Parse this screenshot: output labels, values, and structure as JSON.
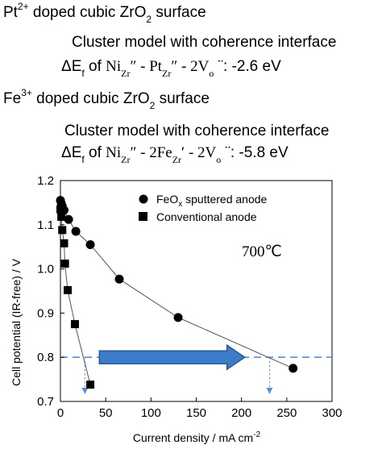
{
  "header": {
    "pt": {
      "line1_prefix": "Pt",
      "line1_sup": "2+",
      "line1_mid": " doped cubic ZrO",
      "line1_sub": "2",
      "line1_suffix": " surface",
      "model": "Cluster model with coherence interface",
      "energy_prefix": "ΔE",
      "energy_sub": "f",
      "energy_of": " of ",
      "energy_formula": "Ni",
      "energy_formula_sub1": "Zr",
      "energy_formula_part2": "″ - Pt",
      "energy_formula_sub2": "Zr",
      "energy_formula_part3": "″ - 2V",
      "energy_formula_sub3": "o",
      "energy_formula_dots": "¨",
      "energy_value": ": -2.6 eV"
    },
    "fe": {
      "line1_prefix": "Fe",
      "line1_sup": "3+",
      "line1_mid": " doped cubic ZrO",
      "line1_sub": "2",
      "line1_suffix": " surface",
      "model": "Cluster model with coherence interface",
      "energy_prefix": "ΔE",
      "energy_sub": "f",
      "energy_of": " of ",
      "energy_formula": "Ni",
      "energy_formula_sub1": "Zr",
      "energy_formula_part2": "″ - 2Fe",
      "energy_formula_sub2": "Zr",
      "energy_formula_part3": "′ - 2V",
      "energy_formula_sub3": "o",
      "energy_formula_dots": "¨",
      "energy_value": ": -5.8 eV"
    }
  },
  "chart_data": {
    "type": "scatter",
    "xlabel": "Current density / mA cm",
    "xlabel_sup": "-2",
    "ylabel": "Cell potential (IR-free) / V",
    "xlim": [
      0,
      300
    ],
    "ylim": [
      0.7,
      1.2
    ],
    "xticks": [
      "0",
      "50",
      "100",
      "150",
      "200",
      "250",
      "300"
    ],
    "yticks": [
      "0.7",
      "0.8",
      "0.9",
      "1.0",
      "1.1",
      "1.2"
    ],
    "annotation": "700℃",
    "reference_line_y": 0.8,
    "series": [
      {
        "name": "FeO",
        "name_sub": "x",
        "name_suffix": " sputtered anode",
        "marker": "circle",
        "x": [
          0,
          1,
          2,
          4,
          9,
          17,
          33,
          65,
          130,
          257
        ],
        "y": [
          1.155,
          1.148,
          1.142,
          1.133,
          1.112,
          1.085,
          1.055,
          0.977,
          0.89,
          0.775
        ]
      },
      {
        "name": "Conventional anode",
        "marker": "square",
        "x": [
          0,
          1,
          2,
          4,
          5,
          8,
          16,
          33
        ],
        "y": [
          1.135,
          1.118,
          1.088,
          1.058,
          1.012,
          0.952,
          0.875,
          0.738
        ]
      }
    ],
    "colors": {
      "reference": "#5a8fd0",
      "arrow_fill": "#3d7cc9",
      "arrow_stroke": "#2a5b99",
      "marker": "#000000",
      "line": "#555555"
    }
  }
}
